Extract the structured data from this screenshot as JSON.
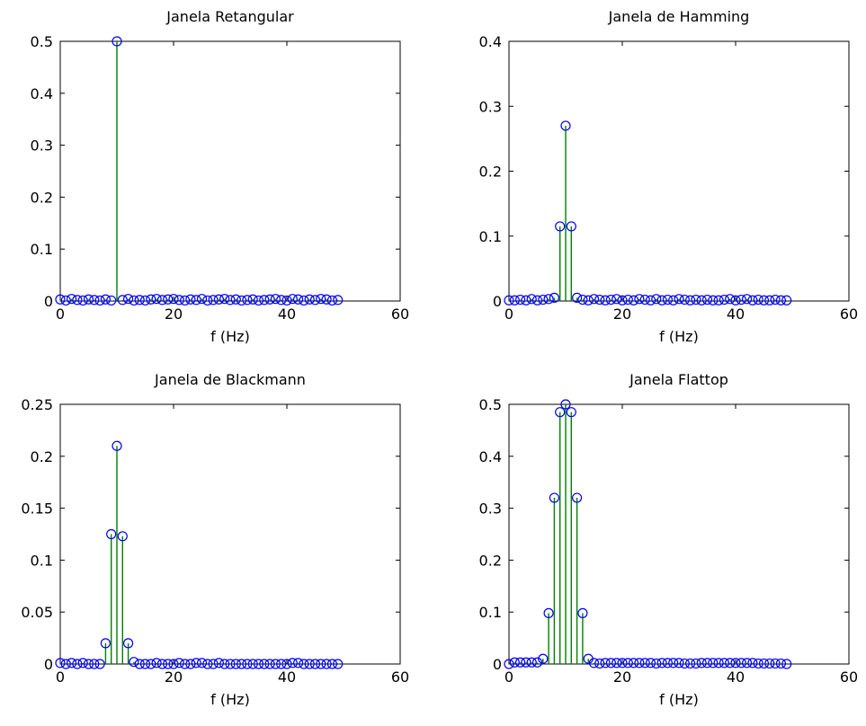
{
  "chart_data": [
    {
      "type": "stem",
      "title": "Janela Retangular",
      "xlabel": "f (Hz)",
      "ylabel": "",
      "xlim": [
        0,
        60
      ],
      "ylim": [
        0,
        0.5
      ],
      "xticks": [
        "0",
        "20",
        "40",
        "60"
      ],
      "yticks": [
        "0",
        "0.1",
        "0.2",
        "0.3",
        "0.4",
        "0.5"
      ],
      "grid": false,
      "colors": {
        "stem": "#008000",
        "marker": "#0000ff",
        "axes": "#000000"
      },
      "x": [
        0,
        1,
        2,
        3,
        4,
        5,
        6,
        7,
        8,
        9,
        10,
        11,
        12,
        13,
        14,
        15,
        16,
        17,
        18,
        19,
        20,
        21,
        22,
        23,
        24,
        25,
        26,
        27,
        28,
        29,
        30,
        31,
        32,
        33,
        34,
        35,
        36,
        37,
        38,
        39,
        40,
        41,
        42,
        43,
        44,
        45,
        46,
        47,
        48,
        49
      ],
      "values": [
        0.003,
        0.001,
        0.004,
        0.002,
        0.001,
        0.003,
        0.002,
        0.001,
        0.003,
        0.001,
        0.5,
        0.002,
        0.004,
        0.001,
        0.002,
        0.001,
        0.003,
        0.004,
        0.002,
        0.003,
        0.004,
        0.002,
        0.001,
        0.003,
        0.002,
        0.004,
        0.001,
        0.002,
        0.003,
        0.004,
        0.002,
        0.003,
        0.001,
        0.002,
        0.003,
        0.001,
        0.002,
        0.003,
        0.004,
        0.002,
        0.001,
        0.004,
        0.003,
        0.001,
        0.003,
        0.002,
        0.004,
        0.003,
        0.001,
        0.002
      ]
    },
    {
      "type": "stem",
      "title": "Janela de Hamming",
      "xlabel": "f (Hz)",
      "ylabel": "",
      "xlim": [
        0,
        60
      ],
      "ylim": [
        0,
        0.4
      ],
      "xticks": [
        "0",
        "20",
        "40",
        "60"
      ],
      "yticks": [
        "0",
        "0.1",
        "0.2",
        "0.3",
        "0.4"
      ],
      "grid": false,
      "colors": {
        "stem": "#008000",
        "marker": "#0000ff",
        "axes": "#000000"
      },
      "x": [
        0,
        1,
        2,
        3,
        4,
        5,
        6,
        7,
        8,
        9,
        10,
        11,
        12,
        13,
        14,
        15,
        16,
        17,
        18,
        19,
        20,
        21,
        22,
        23,
        24,
        25,
        26,
        27,
        28,
        29,
        30,
        31,
        32,
        33,
        34,
        35,
        36,
        37,
        38,
        39,
        40,
        41,
        42,
        43,
        44,
        45,
        46,
        47,
        48,
        49
      ],
      "values": [
        0.001,
        0.001,
        0.002,
        0.001,
        0.003,
        0.001,
        0.002,
        0.003,
        0.005,
        0.115,
        0.27,
        0.115,
        0.005,
        0.002,
        0.001,
        0.003,
        0.002,
        0.001,
        0.002,
        0.003,
        0.001,
        0.002,
        0.001,
        0.003,
        0.002,
        0.001,
        0.003,
        0.001,
        0.002,
        0.001,
        0.003,
        0.002,
        0.001,
        0.002,
        0.001,
        0.002,
        0.001,
        0.001,
        0.002,
        0.003,
        0.001,
        0.002,
        0.003,
        0.001,
        0.002,
        0.001,
        0.001,
        0.002,
        0.001,
        0.001
      ]
    },
    {
      "type": "stem",
      "title": "Janela de Blackmann",
      "xlabel": "f (Hz)",
      "ylabel": "",
      "xlim": [
        0,
        60
      ],
      "ylim": [
        0,
        0.25
      ],
      "xticks": [
        "0",
        "20",
        "40",
        "60"
      ],
      "yticks": [
        "0",
        "0.05",
        "0.1",
        "0.15",
        "0.2",
        "0.25"
      ],
      "grid": false,
      "colors": {
        "stem": "#008000",
        "marker": "#0000ff",
        "axes": "#000000"
      },
      "x": [
        0,
        1,
        2,
        3,
        4,
        5,
        6,
        7,
        8,
        9,
        10,
        11,
        12,
        13,
        14,
        15,
        16,
        17,
        18,
        19,
        20,
        21,
        22,
        23,
        24,
        25,
        26,
        27,
        28,
        29,
        30,
        31,
        32,
        33,
        34,
        35,
        36,
        37,
        38,
        39,
        40,
        41,
        42,
        43,
        44,
        45,
        46,
        47,
        48,
        49
      ],
      "values": [
        0.001,
        0.0,
        0.001,
        0.0,
        0.001,
        0.0,
        0.0,
        0.0,
        0.02,
        0.125,
        0.21,
        0.123,
        0.02,
        0.002,
        0.0,
        0.0,
        0.0,
        0.001,
        0.0,
        0.0,
        0.0,
        0.001,
        0.0,
        0.0,
        0.001,
        0.001,
        0.0,
        0.0,
        0.001,
        0.0,
        0.0,
        0.0,
        0.0,
        0.0,
        0.0,
        0.0,
        0.0,
        0.0,
        0.0,
        0.0,
        0.0,
        0.001,
        0.001,
        0.0,
        0.0,
        0.0,
        0.0,
        0.0,
        0.0,
        0.0
      ]
    },
    {
      "type": "stem",
      "title": "Janela Flattop",
      "xlabel": "f (Hz)",
      "ylabel": "",
      "xlim": [
        0,
        60
      ],
      "ylim": [
        0,
        0.5
      ],
      "xticks": [
        "0",
        "20",
        "40",
        "60"
      ],
      "yticks": [
        "0",
        "0.1",
        "0.2",
        "0.3",
        "0.4",
        "0.5"
      ],
      "grid": false,
      "colors": {
        "stem": "#008000",
        "marker": "#0000ff",
        "axes": "#000000"
      },
      "x": [
        0,
        1,
        2,
        3,
        4,
        5,
        6,
        7,
        8,
        9,
        10,
        11,
        12,
        13,
        14,
        15,
        16,
        17,
        18,
        19,
        20,
        21,
        22,
        23,
        24,
        25,
        26,
        27,
        28,
        29,
        30,
        31,
        32,
        33,
        34,
        35,
        36,
        37,
        38,
        39,
        40,
        41,
        42,
        43,
        44,
        45,
        46,
        47,
        48,
        49
      ],
      "values": [
        0.0,
        0.003,
        0.003,
        0.003,
        0.003,
        0.003,
        0.01,
        0.098,
        0.32,
        0.485,
        0.5,
        0.485,
        0.32,
        0.098,
        0.01,
        0.002,
        0.001,
        0.002,
        0.002,
        0.002,
        0.002,
        0.002,
        0.002,
        0.002,
        0.002,
        0.002,
        0.001,
        0.002,
        0.002,
        0.002,
        0.002,
        0.001,
        0.001,
        0.001,
        0.002,
        0.002,
        0.002,
        0.002,
        0.002,
        0.002,
        0.002,
        0.002,
        0.002,
        0.002,
        0.001,
        0.001,
        0.001,
        0.001,
        0.001,
        0.0
      ]
    }
  ]
}
